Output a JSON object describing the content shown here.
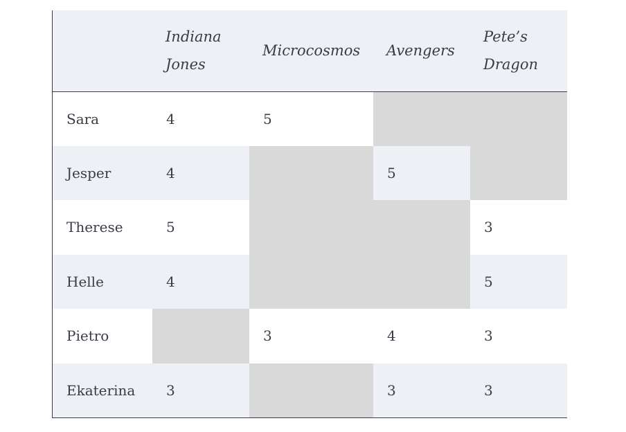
{
  "table": {
    "columns": [
      "",
      "Indiana Jones",
      "Microcosmos",
      "Avengers",
      "Pete’s Dragon"
    ],
    "rows": [
      {
        "name": "Sara",
        "ratings": [
          "4",
          "5",
          "",
          ""
        ]
      },
      {
        "name": "Jesper",
        "ratings": [
          "4",
          "",
          "5",
          ""
        ]
      },
      {
        "name": "Therese",
        "ratings": [
          "5",
          "",
          "",
          "3"
        ]
      },
      {
        "name": "Helle",
        "ratings": [
          "4",
          "",
          "",
          "5"
        ]
      },
      {
        "name": "Pietro",
        "ratings": [
          "",
          "3",
          "4",
          "3"
        ]
      },
      {
        "name": "Ekaterina",
        "ratings": [
          "3",
          "",
          "3",
          "3"
        ]
      }
    ]
  },
  "colors": {
    "header_bg": "#edf0f5",
    "row_alt_bg": "#edf0f5",
    "missing_cell_bg": "#d9d9d9",
    "text": "#3b3b45"
  }
}
